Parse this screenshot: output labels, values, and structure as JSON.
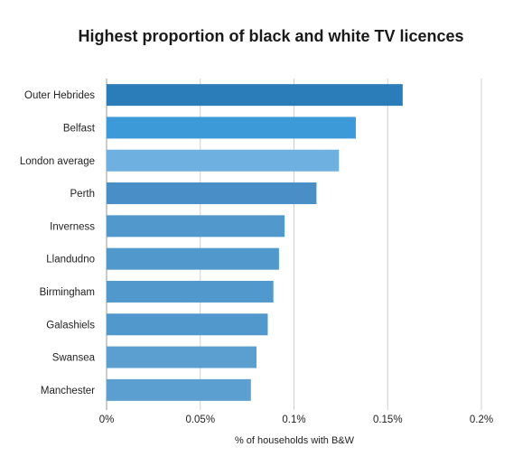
{
  "chart_data": {
    "type": "bar",
    "orientation": "horizontal",
    "title": "Highest proportion of black and white TV licences",
    "xlabel": "% of households with B&W",
    "ylabel": "",
    "xlim": [
      0,
      0.2
    ],
    "x_ticks": [
      0,
      0.05,
      0.1,
      0.15,
      0.2
    ],
    "x_tick_labels": [
      "0%",
      "0.05%",
      "0.1%",
      "0.15%",
      "0.2%"
    ],
    "grid": "vertical",
    "categories": [
      "Outer Hebrides",
      "Belfast",
      "London average",
      "Perth",
      "Inverness",
      "Llandudno",
      "Birmingham",
      "Galashiels",
      "Swansea",
      "Manchester"
    ],
    "values": [
      0.158,
      0.133,
      0.124,
      0.112,
      0.095,
      0.092,
      0.089,
      0.086,
      0.08,
      0.077
    ],
    "colors": [
      "#2a7db9",
      "#3d9ad9",
      "#6eb0df",
      "#4a8ec7",
      "#5198cc",
      "#5198cc",
      "#5198cc",
      "#5198cc",
      "#5b9fd0",
      "#5b9fd0"
    ]
  }
}
